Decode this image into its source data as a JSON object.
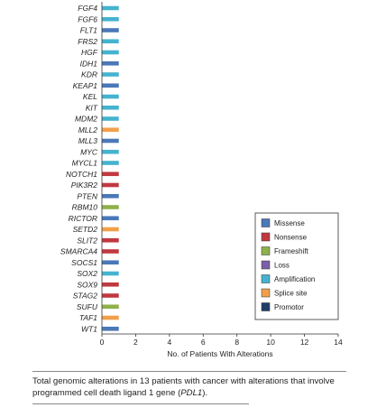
{
  "chart_data": {
    "type": "bar",
    "orientation": "horizontal",
    "categories": [
      "FGF4",
      "FGF6",
      "FLT1",
      "FRS2",
      "HGF",
      "IDH1",
      "KDR",
      "KEAP1",
      "KEL",
      "KIT",
      "MDM2",
      "MLL2",
      "MLL3",
      "MYC",
      "MYCL1",
      "NOTCH1",
      "PIK3R2",
      "PTEN",
      "RBM10",
      "RICTOR",
      "SETD2",
      "SLIT2",
      "SMARCA4",
      "SOCS1",
      "SOX2",
      "SOX9",
      "STAG2",
      "SUFU",
      "TAF1",
      "WT1"
    ],
    "alteration_types": [
      "Amplification",
      "Amplification",
      "Missense",
      "Amplification",
      "Amplification",
      "Missense",
      "Amplification",
      "Missense",
      "Amplification",
      "Amplification",
      "Amplification",
      "Splice site",
      "Missense",
      "Amplification",
      "Amplification",
      "Nonsense",
      "Nonsense",
      "Missense",
      "Frameshift",
      "Missense",
      "Splice site",
      "Nonsense",
      "Nonsense",
      "Missense",
      "Amplification",
      "Nonsense",
      "Nonsense",
      "Frameshift",
      "Splice site",
      "Missense"
    ],
    "values": [
      1,
      1,
      1,
      1,
      1,
      1,
      1,
      1,
      1,
      1,
      1,
      1,
      1,
      1,
      1,
      1,
      1,
      1,
      1,
      1,
      1,
      1,
      1,
      1,
      1,
      1,
      1,
      1,
      1,
      1
    ],
    "xlabel": "No. of Patients With Alterations",
    "ylabel": "",
    "xlim": [
      0,
      14
    ],
    "xticks": [
      0,
      2,
      4,
      6,
      8,
      10,
      12,
      14
    ],
    "grid": false,
    "legend_position": "bottom-right",
    "legend": [
      {
        "label": "Missense",
        "color": "#4a78b8"
      },
      {
        "label": "Nonsense",
        "color": "#c0393f"
      },
      {
        "label": "Frameshift",
        "color": "#8fb04a"
      },
      {
        "label": "Loss",
        "color": "#7a5fa8"
      },
      {
        "label": "Amplification",
        "color": "#45b3cf"
      },
      {
        "label": "Splice site",
        "color": "#f0a04b"
      },
      {
        "label": "Promotor",
        "color": "#1f3f66"
      }
    ]
  },
  "caption": {
    "text_before": "Total genomic alterations in 13 patients with cancer with alterations that involve programmed cell death ligand 1 gene (",
    "gene": "PDL1",
    "text_after": ")."
  }
}
